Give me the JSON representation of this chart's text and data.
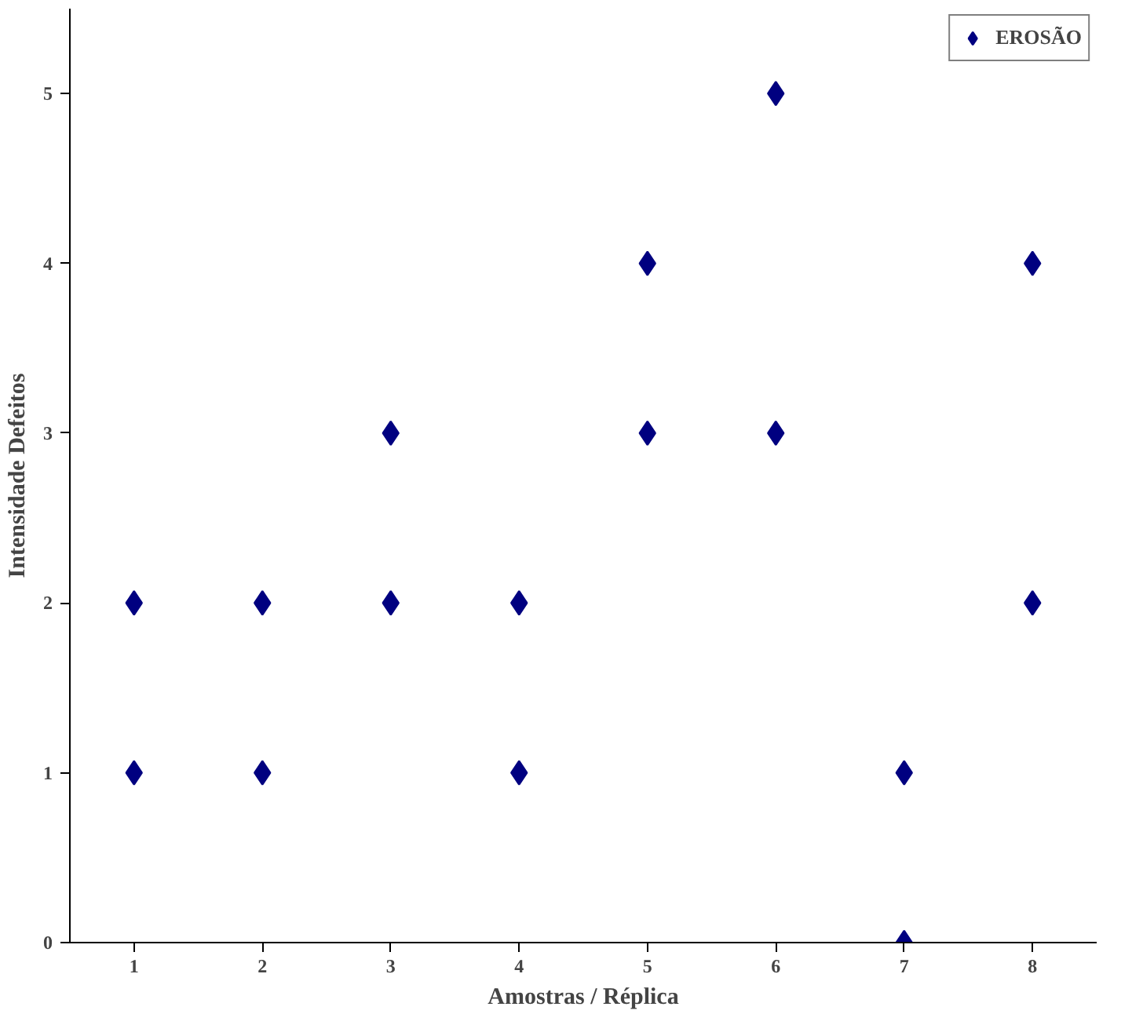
{
  "chart_data": {
    "type": "scatter",
    "xlabel": "Amostras / Réplica",
    "ylabel": "Intensidade Defeitos",
    "series": [
      {
        "name": "EROSÃO",
        "color": "#000080",
        "x": [
          1,
          1,
          2,
          2,
          3,
          3,
          4,
          4,
          5,
          5,
          6,
          6,
          7,
          7,
          8,
          8
        ],
        "values": [
          1,
          2,
          1,
          2,
          2,
          3,
          1,
          2,
          3,
          4,
          3,
          5,
          0,
          1,
          2,
          4
        ]
      }
    ],
    "xlim": [
      0.5,
      8.5
    ],
    "ylim": [
      0,
      5.5
    ],
    "xticks": [
      1,
      2,
      3,
      4,
      5,
      6,
      7,
      8
    ],
    "yticks": [
      0,
      1,
      2,
      3,
      4,
      5
    ],
    "grid": false,
    "legend": "top right",
    "marker": "diamond"
  }
}
